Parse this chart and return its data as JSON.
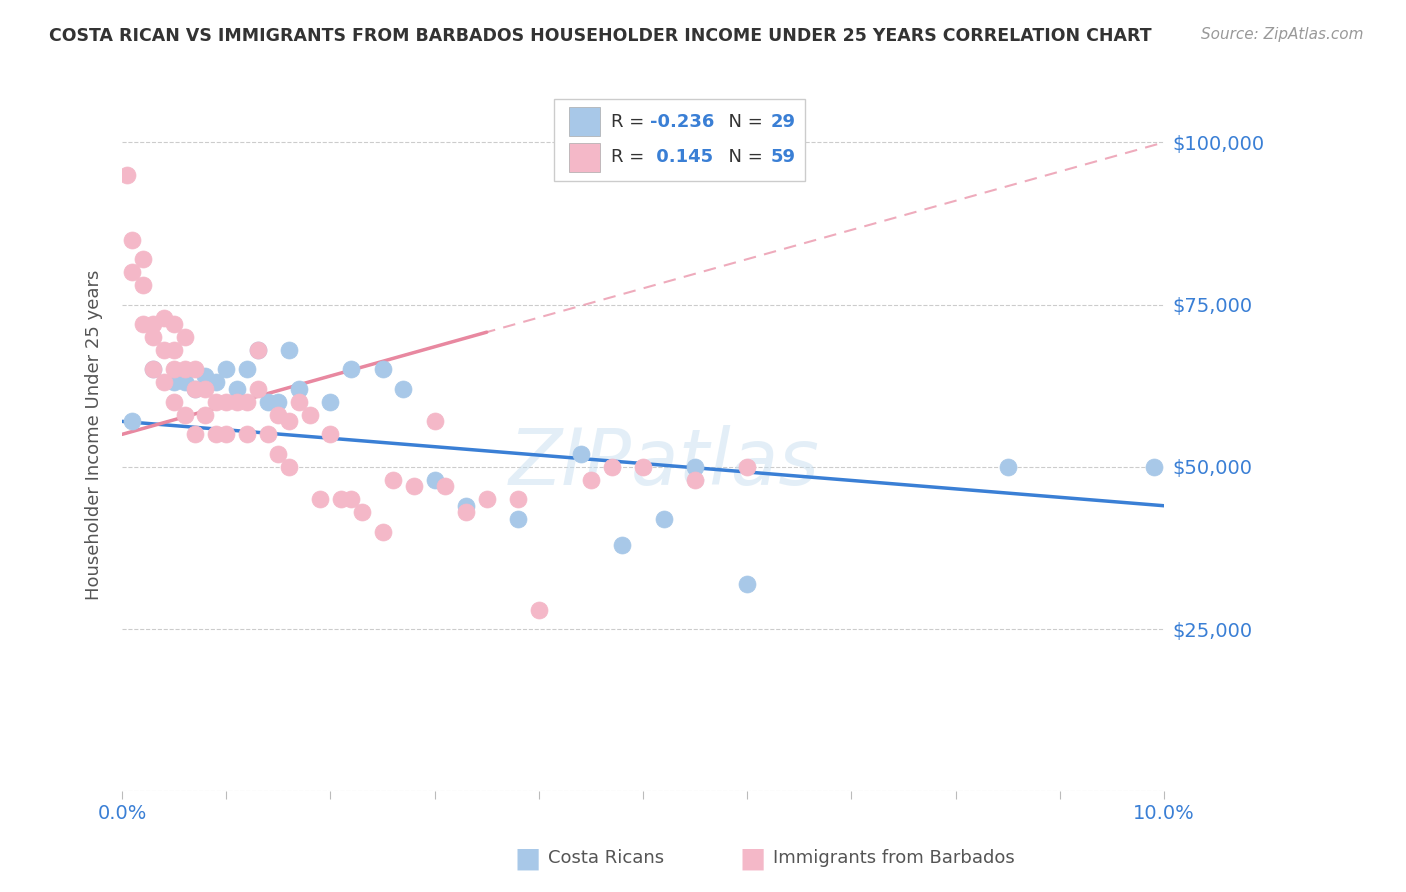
{
  "title": "COSTA RICAN VS IMMIGRANTS FROM BARBADOS HOUSEHOLDER INCOME UNDER 25 YEARS CORRELATION CHART",
  "source": "Source: ZipAtlas.com",
  "ylabel": "Householder Income Under 25 years",
  "legend_label1": "Costa Ricans",
  "legend_label2": "Immigrants from Barbados",
  "r1": -0.236,
  "n1": 29,
  "r2": 0.145,
  "n2": 59,
  "xlim": [
    0.0,
    0.1
  ],
  "ylim": [
    0,
    110000
  ],
  "yticks": [
    0,
    25000,
    50000,
    75000,
    100000
  ],
  "ytick_labels": [
    "",
    "$25,000",
    "$50,000",
    "$75,000",
    "$100,000"
  ],
  "color_blue": "#a8c8e8",
  "color_pink": "#f4b8c8",
  "line_blue": "#3a7fd5",
  "line_pink": "#e888a0",
  "watermark": "ZIPatlas",
  "blue_line_x0": 0.0,
  "blue_line_y0": 57000,
  "blue_line_x1": 0.1,
  "blue_line_y1": 44000,
  "pink_line_x0": 0.0,
  "pink_line_y0": 55000,
  "pink_line_x1": 0.1,
  "pink_line_y1": 100000,
  "blue_points_x": [
    0.001,
    0.003,
    0.005,
    0.006,
    0.007,
    0.008,
    0.009,
    0.01,
    0.011,
    0.012,
    0.013,
    0.014,
    0.015,
    0.016,
    0.017,
    0.02,
    0.022,
    0.025,
    0.027,
    0.03,
    0.033,
    0.038,
    0.044,
    0.048,
    0.052,
    0.055,
    0.06,
    0.085,
    0.099
  ],
  "blue_points_y": [
    57000,
    65000,
    63000,
    63000,
    62000,
    64000,
    63000,
    65000,
    62000,
    65000,
    68000,
    60000,
    60000,
    68000,
    62000,
    60000,
    65000,
    65000,
    62000,
    48000,
    44000,
    42000,
    52000,
    38000,
    42000,
    50000,
    32000,
    50000,
    50000
  ],
  "pink_points_x": [
    0.0005,
    0.001,
    0.001,
    0.002,
    0.002,
    0.002,
    0.003,
    0.003,
    0.003,
    0.004,
    0.004,
    0.004,
    0.005,
    0.005,
    0.005,
    0.005,
    0.006,
    0.006,
    0.006,
    0.007,
    0.007,
    0.007,
    0.008,
    0.008,
    0.009,
    0.009,
    0.01,
    0.01,
    0.011,
    0.012,
    0.012,
    0.013,
    0.013,
    0.014,
    0.015,
    0.015,
    0.016,
    0.016,
    0.017,
    0.018,
    0.019,
    0.02,
    0.021,
    0.022,
    0.023,
    0.025,
    0.026,
    0.028,
    0.03,
    0.031,
    0.033,
    0.035,
    0.038,
    0.04,
    0.045,
    0.047,
    0.05,
    0.055,
    0.06
  ],
  "pink_points_y": [
    95000,
    85000,
    80000,
    82000,
    78000,
    72000,
    72000,
    70000,
    65000,
    73000,
    68000,
    63000,
    72000,
    68000,
    65000,
    60000,
    70000,
    65000,
    58000,
    65000,
    62000,
    55000,
    62000,
    58000,
    60000,
    55000,
    60000,
    55000,
    60000,
    60000,
    55000,
    68000,
    62000,
    55000,
    58000,
    52000,
    57000,
    50000,
    60000,
    58000,
    45000,
    55000,
    45000,
    45000,
    43000,
    40000,
    48000,
    47000,
    57000,
    47000,
    43000,
    45000,
    45000,
    28000,
    48000,
    50000,
    50000,
    48000,
    50000
  ]
}
